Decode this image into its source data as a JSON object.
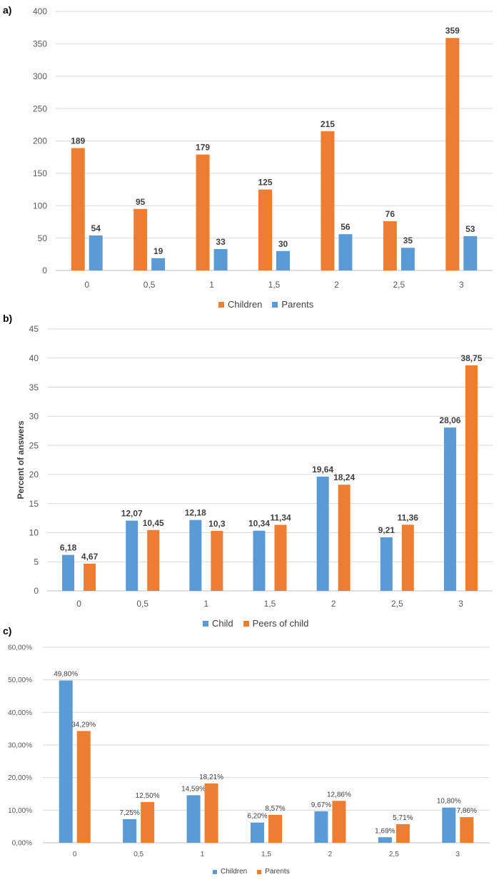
{
  "chart_data": [
    {
      "type": "bar",
      "panel_label": "a)",
      "categories": [
        "0",
        "0,5",
        "1",
        "1,5",
        "2",
        "2,5",
        "3"
      ],
      "series": [
        {
          "name": "Children",
          "color": "#ED7D31",
          "values": [
            189,
            95,
            179,
            125,
            215,
            76,
            359
          ],
          "labels": [
            "189",
            "95",
            "179",
            "125",
            "215",
            "76",
            "359"
          ]
        },
        {
          "name": "Parents",
          "color": "#5B9BD5",
          "values": [
            54,
            19,
            33,
            30,
            56,
            35,
            53
          ],
          "labels": [
            "54",
            "19",
            "33",
            "30",
            "56",
            "35",
            "53"
          ]
        }
      ],
      "ylim": [
        0,
        400
      ],
      "yticks": [
        "0",
        "50",
        "100",
        "150",
        "200",
        "250",
        "300",
        "350",
        "400"
      ],
      "ylabel": "",
      "grid": true,
      "legend": "bottom-center"
    },
    {
      "type": "bar",
      "panel_label": "b)",
      "categories": [
        "0",
        "0,5",
        "1",
        "1,5",
        "2",
        "2,5",
        "3"
      ],
      "series": [
        {
          "name": "Child",
          "color": "#5B9BD5",
          "values": [
            6.18,
            12.07,
            12.18,
            10.34,
            19.64,
            9.21,
            28.06
          ],
          "labels": [
            "6,18",
            "12,07",
            "12,18",
            "10,34",
            "19,64",
            "9,21",
            "28,06"
          ]
        },
        {
          "name": "Peers of child",
          "color": "#ED7D31",
          "values": [
            4.67,
            10.45,
            10.3,
            11.34,
            18.24,
            11.36,
            38.75
          ],
          "labels": [
            "4,67",
            "10,45",
            "10,3",
            "11,34",
            "18,24",
            "11,36",
            "38,75"
          ]
        }
      ],
      "ylim": [
        0,
        45
      ],
      "yticks": [
        "0",
        "5",
        "10",
        "15",
        "20",
        "25",
        "30",
        "35",
        "40",
        "45"
      ],
      "ylabel": "Percent of answers",
      "grid": true,
      "legend": "bottom-center"
    },
    {
      "type": "bar",
      "panel_label": "c)",
      "categories": [
        "0",
        "0,5",
        "1",
        "1,5",
        "2",
        "2,5",
        "3"
      ],
      "series": [
        {
          "name": "Children",
          "color": "#5B9BD5",
          "values": [
            49.8,
            7.25,
            14.59,
            6.2,
            9.67,
            1.69,
            10.8
          ],
          "labels": [
            "49,80%",
            "7,25%",
            "14,59%",
            "6,20%",
            "9,67%",
            "1,69%",
            "10,80%"
          ]
        },
        {
          "name": "Parents",
          "color": "#ED7D31",
          "values": [
            34.29,
            12.5,
            18.21,
            8.57,
            12.86,
            5.71,
            7.86
          ],
          "labels": [
            "34,29%",
            "12,50%",
            "18,21%",
            "8,57%",
            "12,86%",
            "5,71%",
            "7,86%"
          ]
        }
      ],
      "ylim": [
        0,
        60
      ],
      "yticks": [
        "0,00%",
        "10,00%",
        "20,00%",
        "30,00%",
        "40,00%",
        "50,00%",
        "60,00%"
      ],
      "ylabel": "",
      "grid": true,
      "legend": "bottom-center"
    }
  ]
}
